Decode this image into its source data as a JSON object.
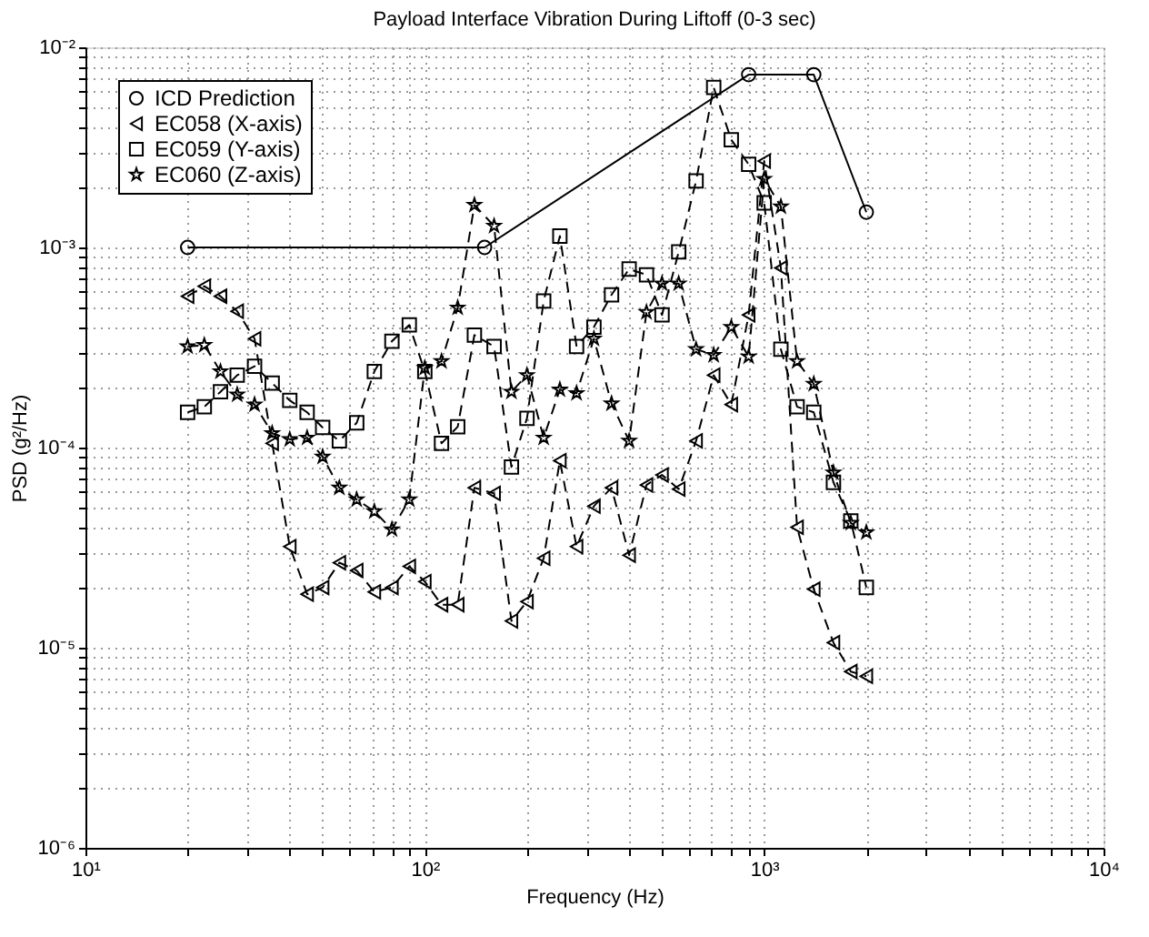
{
  "chart_data": {
    "type": "line",
    "title": "Payload Interface Vibration During Liftoff (0-3 sec)",
    "xlabel": "Frequency (Hz)",
    "ylabel": "PSD (g²/Hz)",
    "log": "xy",
    "grid": true,
    "legend": "top left",
    "xlim": [
      10,
      10000
    ],
    "ylim": [
      1e-06,
      0.01
    ],
    "xticks": [
      {
        "value": 10,
        "label": "10¹"
      },
      {
        "value": 20,
        "label": null
      },
      {
        "value": 30,
        "label": null
      },
      {
        "value": 40,
        "label": null
      },
      {
        "value": 50,
        "label": null
      },
      {
        "value": 60,
        "label": null
      },
      {
        "value": 70,
        "label": null
      },
      {
        "value": 80,
        "label": null
      },
      {
        "value": 90,
        "label": null
      },
      {
        "value": 100,
        "label": "10²"
      },
      {
        "value": 200,
        "label": null
      },
      {
        "value": 300,
        "label": null
      },
      {
        "value": 400,
        "label": null
      },
      {
        "value": 500,
        "label": null
      },
      {
        "value": 600,
        "label": null
      },
      {
        "value": 700,
        "label": null
      },
      {
        "value": 800,
        "label": null
      },
      {
        "value": 900,
        "label": null
      },
      {
        "value": 1000,
        "label": "10³"
      },
      {
        "value": 2000,
        "label": null
      },
      {
        "value": 3000,
        "label": null
      },
      {
        "value": 4000,
        "label": null
      },
      {
        "value": 5000,
        "label": null
      },
      {
        "value": 6000,
        "label": null
      },
      {
        "value": 7000,
        "label": null
      },
      {
        "value": 8000,
        "label": null
      },
      {
        "value": 9000,
        "label": null
      },
      {
        "value": 10000,
        "label": "10⁴"
      }
    ],
    "yticks": [
      {
        "value": 1e-06,
        "label": "10⁻⁶"
      },
      {
        "value": 2e-06,
        "label": null
      },
      {
        "value": 3e-06,
        "label": null
      },
      {
        "value": 4e-06,
        "label": null
      },
      {
        "value": 5e-06,
        "label": null
      },
      {
        "value": 6e-06,
        "label": null
      },
      {
        "value": 7e-06,
        "label": null
      },
      {
        "value": 8e-06,
        "label": null
      },
      {
        "value": 9e-06,
        "label": null
      },
      {
        "value": 1e-05,
        "label": "10⁻⁵"
      },
      {
        "value": 2e-05,
        "label": null
      },
      {
        "value": 3e-05,
        "label": null
      },
      {
        "value": 4e-05,
        "label": null
      },
      {
        "value": 5e-05,
        "label": null
      },
      {
        "value": 6e-05,
        "label": null
      },
      {
        "value": 7e-05,
        "label": null
      },
      {
        "value": 8e-05,
        "label": null
      },
      {
        "value": 9e-05,
        "label": null
      },
      {
        "value": 0.0001,
        "label": "10⁻⁴"
      },
      {
        "value": 0.0002,
        "label": null
      },
      {
        "value": 0.0003,
        "label": null
      },
      {
        "value": 0.0004,
        "label": null
      },
      {
        "value": 0.0005,
        "label": null
      },
      {
        "value": 0.0006,
        "label": null
      },
      {
        "value": 0.0007,
        "label": null
      },
      {
        "value": 0.0008,
        "label": null
      },
      {
        "value": 0.0009,
        "label": null
      },
      {
        "value": 0.001,
        "label": "10⁻³"
      },
      {
        "value": 0.002,
        "label": null
      },
      {
        "value": 0.003,
        "label": null
      },
      {
        "value": 0.004,
        "label": null
      },
      {
        "value": 0.005,
        "label": null
      },
      {
        "value": 0.006,
        "label": null
      },
      {
        "value": 0.007,
        "label": null
      },
      {
        "value": 0.008,
        "label": null
      },
      {
        "value": 0.009,
        "label": null
      },
      {
        "value": 0.01,
        "label": "10⁻²"
      }
    ],
    "x": [
      20,
      22.4,
      25,
      28,
      31.5,
      35.5,
      40,
      45,
      50,
      56,
      63,
      71,
      80,
      90,
      100,
      112,
      125,
      140,
      160,
      180,
      200,
      224,
      250,
      280,
      315,
      355,
      400,
      450,
      500,
      560,
      630,
      710,
      800,
      900,
      1000,
      1120,
      1250,
      1400,
      1600,
      1800,
      2000
    ],
    "series": [
      {
        "name": "ICD Prediction",
        "color": "#000000",
        "marker": "circle",
        "line_style": "solid",
        "x": [
          20,
          150,
          900,
          1400,
          2000
        ],
        "values": [
          0.001,
          0.001,
          0.0073,
          0.0073,
          0.0015
        ]
      },
      {
        "name": "EC058 (X-axis)",
        "color": "#000000",
        "marker": "triangle",
        "line_style": "dashed",
        "values": [
          0.00057,
          0.00064,
          0.00057,
          0.00048,
          0.00035,
          0.000105,
          3.2e-05,
          1.85e-05,
          2e-05,
          2.66e-05,
          2.43e-05,
          1.9e-05,
          2e-05,
          2.55e-05,
          2.14e-05,
          1.64e-05,
          1.64e-05,
          6.3e-05,
          5.9e-05,
          1.36e-05,
          1.7e-05,
          2.8e-05,
          8.6e-05,
          3.2e-05,
          5.1e-05,
          6.3e-05,
          2.9e-05,
          6.5e-05,
          7.3e-05,
          6.2e-05,
          0.000108,
          0.00023,
          0.000164,
          0.00046,
          0.0027,
          0.00079,
          4e-05,
          1.96e-05,
          1.06e-05,
          7.6e-06,
          7.2e-06
        ]
      },
      {
        "name": "EC059 (Y-axis)",
        "color": "#000000",
        "marker": "square",
        "line_style": "dashed",
        "values": [
          0.00015,
          0.00016,
          0.00019,
          0.00023,
          0.000255,
          0.00021,
          0.000172,
          0.00015,
          0.000126,
          0.000108,
          0.000133,
          0.00024,
          0.00034,
          0.00041,
          0.00024,
          0.000105,
          0.000127,
          0.000365,
          0.00032,
          8e-05,
          0.00014,
          0.00054,
          0.00114,
          0.00032,
          0.0004,
          0.00058,
          0.00078,
          0.00073,
          0.00046,
          0.00095,
          0.00215,
          0.0063,
          0.00345,
          0.0026,
          0.00167,
          0.00031,
          0.00016,
          0.00015,
          6.7e-05,
          4.3e-05,
          2e-05
        ]
      },
      {
        "name": "EC060 (Z-axis)",
        "color": "#000000",
        "marker": "star",
        "line_style": "dashed",
        "values": [
          0.00032,
          0.000325,
          0.00024,
          0.000184,
          0.000164,
          0.000118,
          0.00011,
          0.000112,
          9e-05,
          6.3e-05,
          5.5e-05,
          4.8e-05,
          3.9e-05,
          5.5e-05,
          0.00025,
          0.00027,
          0.0005,
          0.00163,
          0.00128,
          0.00019,
          0.00023,
          0.000112,
          0.000195,
          0.000187,
          0.00035,
          0.000166,
          0.000108,
          0.000475,
          0.00066,
          0.00066,
          0.00031,
          0.00029,
          0.0004,
          0.000285,
          0.0022,
          0.0016,
          0.00027,
          0.000208,
          7.5e-05,
          4.2e-05,
          3.77e-05
        ]
      }
    ]
  }
}
